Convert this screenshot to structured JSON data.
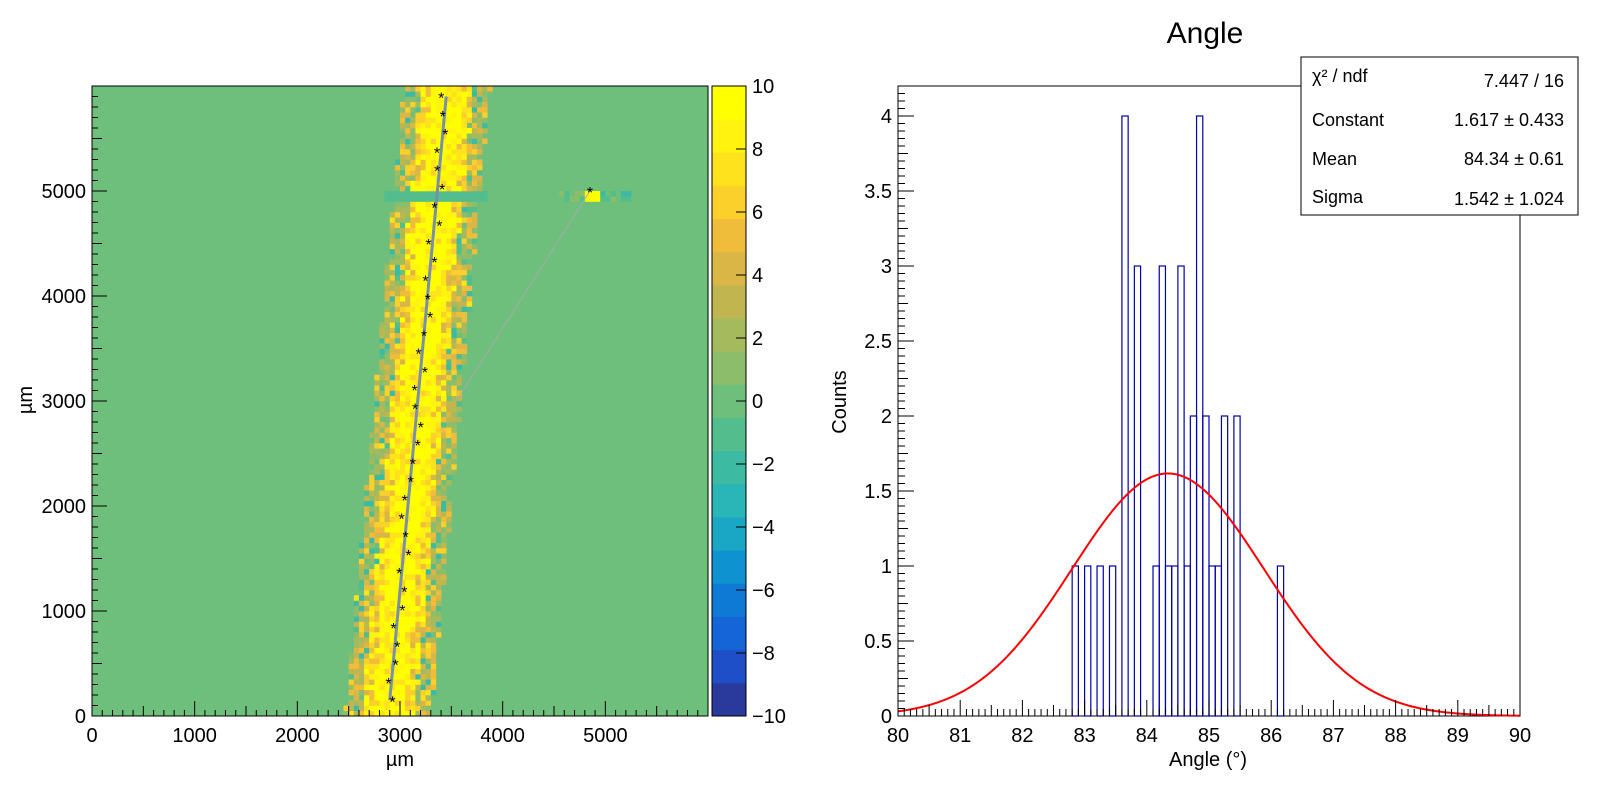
{
  "chart_data": [
    {
      "type": "heatmap",
      "title": "",
      "xlabel": "µm",
      "ylabel": "µm",
      "xlim": [
        0,
        6000
      ],
      "ylim": [
        0,
        6000
      ],
      "x_ticks": [
        "0",
        "1000",
        "2000",
        "3000",
        "4000",
        "5000"
      ],
      "y_ticks": [
        "0",
        "1000",
        "2000",
        "3000",
        "4000",
        "5000"
      ],
      "colorbar": {
        "range": [
          -10,
          10
        ],
        "ticks": [
          "10",
          "8",
          "6",
          "4",
          "2",
          "0",
          "−2",
          "−4",
          "−6",
          "−8",
          "−10"
        ],
        "palette": [
          "#2a3a9c",
          "#1f4fc8",
          "#1565d8",
          "#0f7ad6",
          "#0f92d0",
          "#1aa6c5",
          "#2ab5b6",
          "#3dbba2",
          "#52bd8d",
          "#6ebe7c",
          "#8bbd6a",
          "#a5ba5d",
          "#c0b650",
          "#dab647",
          "#f0bd3a",
          "#fbd02b",
          "#fde21c",
          "#fff30f",
          "#ffff00"
        ]
      },
      "track": {
        "start": [
          2900,
          150
        ],
        "end": [
          3450,
          5900
        ],
        "outlier_hit": [
          4850,
          5000
        ],
        "outlier_link_to": [
          3550,
          3000
        ],
        "hit_row_y": 4950,
        "outlier_row_x": [
          4560,
          5360
        ]
      }
    },
    {
      "type": "bar",
      "title": "Angle",
      "xlabel": "Angle (°)",
      "ylabel": "Counts",
      "xlim": [
        80,
        90
      ],
      "ylim": [
        0,
        4.2
      ],
      "x_ticks": [
        "80",
        "81",
        "82",
        "83",
        "84",
        "85",
        "86",
        "87",
        "88",
        "89",
        "90"
      ],
      "y_ticks": [
        "0",
        "0.5",
        "1",
        "1.5",
        "2",
        "2.5",
        "3",
        "3.5",
        "4"
      ],
      "bin_width": 0.1,
      "histogram_bins": [
        {
          "x": 82.8,
          "count": 1
        },
        {
          "x": 83.0,
          "count": 1
        },
        {
          "x": 83.2,
          "count": 1
        },
        {
          "x": 83.4,
          "count": 1
        },
        {
          "x": 83.6,
          "count": 4
        },
        {
          "x": 83.8,
          "count": 3
        },
        {
          "x": 84.1,
          "count": 1
        },
        {
          "x": 84.2,
          "count": 3
        },
        {
          "x": 84.3,
          "count": 1
        },
        {
          "x": 84.4,
          "count": 1
        },
        {
          "x": 84.5,
          "count": 3
        },
        {
          "x": 84.6,
          "count": 1
        },
        {
          "x": 84.7,
          "count": 2
        },
        {
          "x": 84.8,
          "count": 4
        },
        {
          "x": 84.9,
          "count": 2
        },
        {
          "x": 85.0,
          "count": 1
        },
        {
          "x": 85.1,
          "count": 1
        },
        {
          "x": 85.2,
          "count": 2
        },
        {
          "x": 85.4,
          "count": 2
        },
        {
          "x": 86.1,
          "count": 1
        }
      ],
      "fit": {
        "function": "gaus",
        "constant": 1.617,
        "mean": 84.34,
        "sigma": 1.542,
        "color": "#ff0000"
      },
      "series_color": "#0000aa",
      "stats_box": {
        "rows": [
          {
            "label": "χ² / ndf",
            "value": "7.447 / 16"
          },
          {
            "label": "Constant",
            "value": "1.617 ± 0.433"
          },
          {
            "label": "Mean",
            "value": "84.34 ± 0.61"
          },
          {
            "label": "Sigma",
            "value": "1.542 ± 1.024"
          }
        ]
      }
    }
  ]
}
